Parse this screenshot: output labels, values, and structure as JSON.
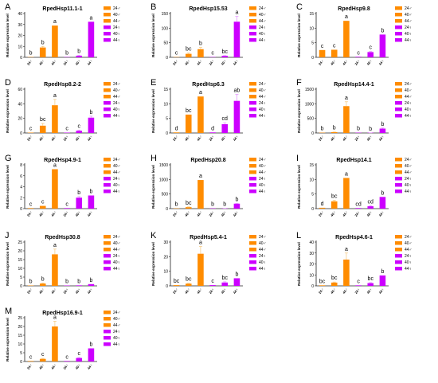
{
  "figure": {
    "legend_labels": [
      "24♂",
      "40♂",
      "44♂",
      "24♀",
      "40♀",
      "44♀"
    ],
    "x_tick_labels": [
      "24♂",
      "40♂",
      "44♂",
      "24♀",
      "40♀",
      "44♀"
    ],
    "colors": {
      "male": "#ff8c00",
      "female": "#cc00ff",
      "axis": "#222222",
      "error_male": "#f5c77a",
      "error_female": "#e28cff"
    }
  },
  "chart_data": [
    {
      "panel": "A",
      "type": "bar",
      "title": "RpedHsp11.1-1",
      "ylabel": "Relative expression level",
      "ylim": [
        0,
        40
      ],
      "yticks": [
        0,
        10,
        20,
        30,
        40
      ],
      "categories": [
        "24♂",
        "40♂",
        "44♂",
        "24♀",
        "40♀",
        "44♀"
      ],
      "values": [
        0.3,
        9,
        29,
        0.2,
        1.5,
        32.5
      ],
      "errors": [
        0,
        1,
        0,
        0,
        0.3,
        0
      ],
      "letters": [
        "b",
        "b",
        "a",
        "b",
        "b",
        "a"
      ]
    },
    {
      "panel": "B",
      "type": "bar",
      "title": "RpedHsp15.53",
      "ylabel": "Relative expression level",
      "ylim": [
        0,
        150
      ],
      "yticks": [
        0,
        50,
        100,
        150
      ],
      "categories": [
        "24♂",
        "40♂",
        "44♂",
        "24♀",
        "40♀",
        "44♀"
      ],
      "values": [
        1,
        12,
        28,
        1,
        5,
        122
      ],
      "errors": [
        0,
        3,
        6,
        0,
        1,
        18
      ],
      "letters": [
        "c",
        "bc",
        "b",
        "c",
        "bc",
        "a"
      ]
    },
    {
      "panel": "C",
      "type": "bar",
      "title": "RpedHsp9.8",
      "ylabel": "Relative expression level",
      "ylim": [
        0,
        15
      ],
      "yticks": [
        0,
        5,
        10,
        15
      ],
      "categories": [
        "24♂",
        "40♂",
        "44♂",
        "24♀",
        "40♀",
        "44♀"
      ],
      "values": [
        2.5,
        2.6,
        12.5,
        0.2,
        1.8,
        7.8
      ],
      "errors": [
        0,
        0,
        0,
        0,
        0.2,
        0
      ],
      "letters": [
        "c",
        "c",
        "a",
        "c",
        "c",
        "b"
      ]
    },
    {
      "panel": "D",
      "type": "bar",
      "title": "RpedHsp8.2-2",
      "ylabel": "Relative expression level",
      "ylim": [
        0,
        60
      ],
      "yticks": [
        0,
        20,
        40,
        60
      ],
      "categories": [
        "24♂",
        "40♂",
        "44♂",
        "24♀",
        "40♀",
        "44♀"
      ],
      "values": [
        0.5,
        10,
        38,
        0.5,
        3,
        21
      ],
      "errors": [
        0,
        3,
        8,
        0,
        1,
        2
      ],
      "letters": [
        "c",
        "bc",
        "a",
        "c",
        "c",
        "b"
      ]
    },
    {
      "panel": "E",
      "type": "bar",
      "title": "RpedHsp6.3",
      "ylabel": "Relative expression level",
      "ylim": [
        0,
        15
      ],
      "yticks": [
        0,
        5,
        10,
        15
      ],
      "categories": [
        "24♂",
        "40♂",
        "44♂",
        "24♀",
        "40♀",
        "44♀"
      ],
      "values": [
        0.2,
        6.3,
        12.5,
        0.2,
        3,
        11
      ],
      "errors": [
        0,
        0,
        0,
        0,
        0.5,
        2.2
      ],
      "letters": [
        "d",
        "bc",
        "a",
        "d",
        "cd",
        "ab"
      ]
    },
    {
      "panel": "F",
      "type": "bar",
      "title": "RpedHsp14.4-1",
      "ylabel": "Relative expression level",
      "ylim": [
        0,
        1500
      ],
      "yticks": [
        0,
        500,
        1000,
        1500
      ],
      "categories": [
        "24♂",
        "40♂",
        "44♂",
        "24♀",
        "40♀",
        "44♀"
      ],
      "values": [
        2,
        30,
        920,
        2,
        5,
        150
      ],
      "errors": [
        0,
        5,
        150,
        0,
        1,
        20
      ],
      "letters": [
        "b",
        "b",
        "a",
        "b",
        "b",
        "b"
      ]
    },
    {
      "panel": "G",
      "type": "bar",
      "title": "RpedHsp4.9-1",
      "ylabel": "Relative expression level",
      "ylim": [
        0,
        8
      ],
      "yticks": [
        0,
        2,
        4,
        6,
        8
      ],
      "categories": [
        "24♂",
        "40♂",
        "44♂",
        "24♀",
        "40♀",
        "44♀"
      ],
      "values": [
        0.1,
        0.5,
        7.2,
        0.1,
        2,
        2.4
      ],
      "errors": [
        0,
        0,
        0,
        0,
        0.2,
        0
      ],
      "letters": [
        "c",
        "c",
        "a",
        "c",
        "b",
        "b"
      ]
    },
    {
      "panel": "H",
      "type": "bar",
      "title": "RpedHsp20.8",
      "ylabel": "Relative expression level",
      "ylim": [
        0,
        1500
      ],
      "yticks": [
        0,
        500,
        1000,
        1500
      ],
      "categories": [
        "24♂",
        "40♂",
        "44♂",
        "24♀",
        "40♀",
        "44♀"
      ],
      "values": [
        1,
        50,
        980,
        1,
        5,
        170
      ],
      "errors": [
        0,
        10,
        0,
        0,
        2,
        10
      ],
      "letters": [
        "b",
        "bc",
        "a",
        "b",
        "b",
        "b"
      ]
    },
    {
      "panel": "I",
      "type": "bar",
      "title": "RpedHsp14.1",
      "ylabel": "Relative expression level",
      "ylim": [
        0,
        15
      ],
      "yticks": [
        0,
        5,
        10,
        15
      ],
      "categories": [
        "24♂",
        "40♂",
        "44♂",
        "24♀",
        "40♀",
        "44♀"
      ],
      "values": [
        0.3,
        2.5,
        10.5,
        0.2,
        0.8,
        4
      ],
      "errors": [
        0,
        0.4,
        0,
        0,
        0.2,
        0
      ],
      "letters": [
        "d",
        "bc",
        "a",
        "cd",
        "cd",
        "b"
      ]
    },
    {
      "panel": "J",
      "type": "bar",
      "title": "RpedHsp30.8",
      "ylabel": "Relative expression level",
      "ylim": [
        0,
        25
      ],
      "yticks": [
        0,
        5,
        10,
        15,
        20,
        25
      ],
      "categories": [
        "24♂",
        "40♂",
        "44♂",
        "24♀",
        "40♀",
        "44♀"
      ],
      "values": [
        0.2,
        1.3,
        18,
        0.2,
        0.3,
        1
      ],
      "errors": [
        0,
        0.3,
        3,
        0,
        0,
        0
      ],
      "letters": [
        "b",
        "b",
        "a",
        "b",
        "b",
        "b"
      ]
    },
    {
      "panel": "K",
      "type": "bar",
      "title": "RpedHsp5.4-1",
      "ylabel": "Relative expression level",
      "ylim": [
        0,
        30
      ],
      "yticks": [
        0,
        10,
        20,
        30
      ],
      "categories": [
        "24♂",
        "40♂",
        "44♂",
        "24♀",
        "40♀",
        "44♀"
      ],
      "values": [
        0.5,
        1.5,
        22,
        0.5,
        2.3,
        5.2
      ],
      "errors": [
        0,
        0.3,
        5,
        0,
        0.5,
        0
      ],
      "letters": [
        "bc",
        "bc",
        "a",
        "c",
        "bc",
        "b"
      ]
    },
    {
      "panel": "L",
      "type": "bar",
      "title": "RpedHsp4.6-1",
      "ylabel": "Relative expression level",
      "ylim": [
        0,
        40
      ],
      "yticks": [
        0,
        10,
        20,
        30,
        40
      ],
      "categories": [
        "24♂",
        "40♂",
        "44♂",
        "24♀",
        "40♀",
        "44♀"
      ],
      "values": [
        0.5,
        3,
        24,
        0.5,
        2.5,
        9.5
      ],
      "errors": [
        0,
        0.5,
        6,
        0,
        0.5,
        0
      ],
      "letters": [
        "bc",
        "bc",
        "a",
        "c",
        "bc",
        "b"
      ]
    },
    {
      "panel": "M",
      "type": "bar",
      "title": "RpedHsp16.9-1",
      "ylabel": "Relative expression level",
      "ylim": [
        0,
        25
      ],
      "yticks": [
        0,
        5,
        10,
        15,
        20,
        25
      ],
      "categories": [
        "24♂",
        "40♂",
        "44♂",
        "24♀",
        "40♀",
        "44♀"
      ],
      "values": [
        0.3,
        1.5,
        20,
        0.3,
        2,
        7.5
      ],
      "errors": [
        0,
        0.3,
        3,
        0,
        0.3,
        0
      ],
      "letters": [
        "c",
        "c",
        "a",
        "c",
        "c",
        "b"
      ]
    }
  ]
}
